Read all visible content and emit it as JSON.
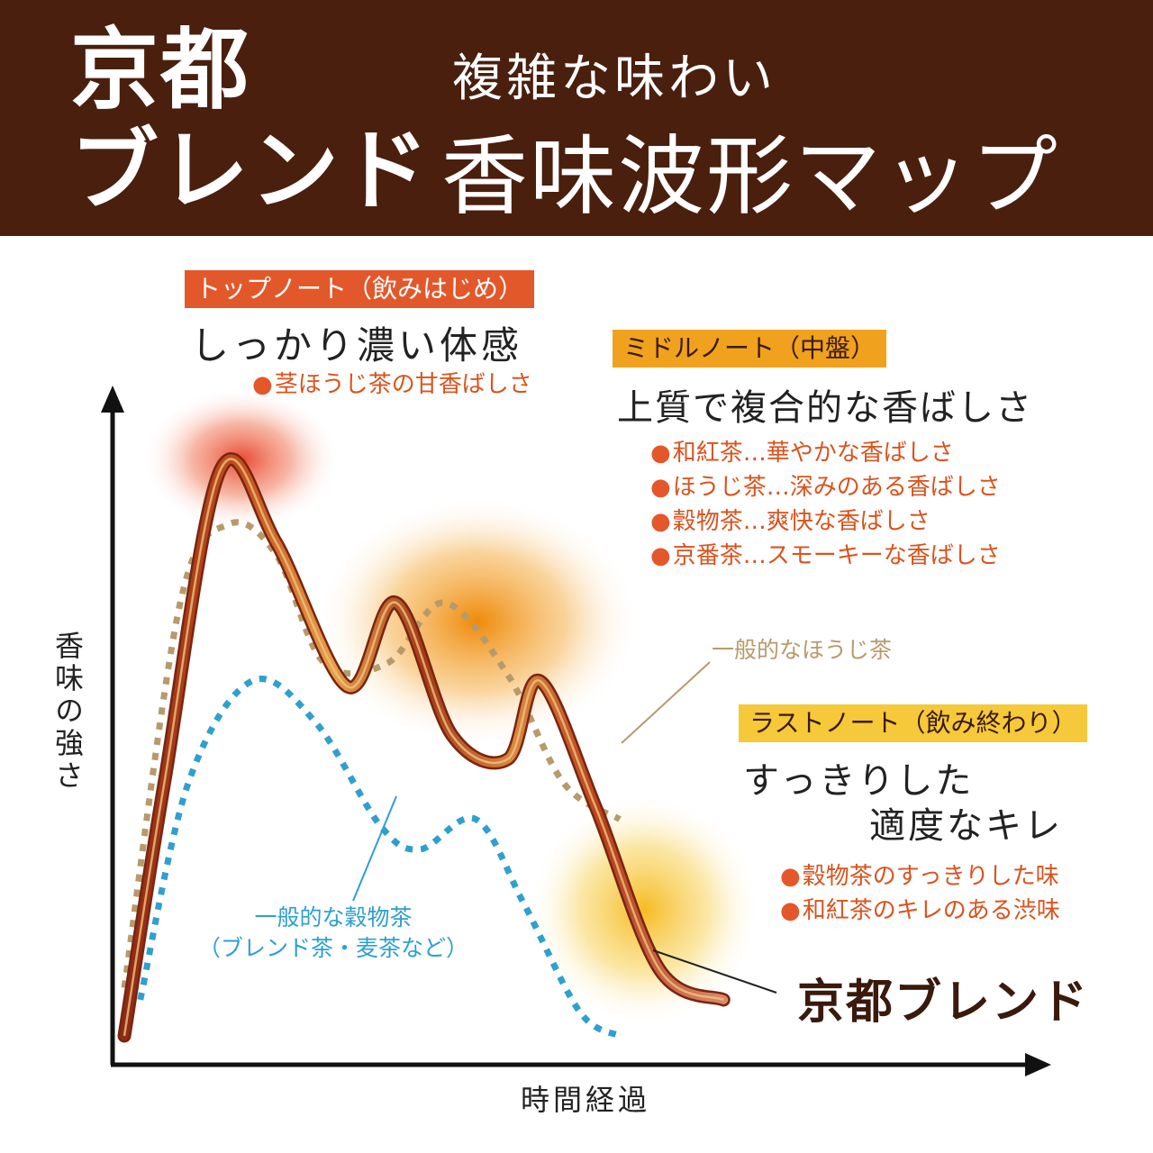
{
  "header": {
    "brand_line1": "京都",
    "brand_line2": "ブレンド",
    "subtitle": "複雑な味わい",
    "title": "香味波形マップ",
    "background_color": "#4a1f0e"
  },
  "top_note": {
    "tag": "トップノート（飲みはじめ）",
    "heading": "しっかり濃い体感",
    "items": [
      "茎ほうじ茶の甘香ばしさ"
    ]
  },
  "middle_note": {
    "tag": "ミドルノート（中盤）",
    "heading": "上質で複合的な香ばしさ",
    "items": [
      "和紅茶…華やかな香ばしさ",
      "ほうじ茶…深みのある香ばしさ",
      "穀物茶…爽快な香ばしさ",
      "京番茶…スモーキーな香ばしさ"
    ]
  },
  "last_note": {
    "tag": "ラストノート（飲み終わり）",
    "heading_line1": "すっきりした",
    "heading_line2": "適度なキレ",
    "items": [
      "穀物茶のすっきりした味",
      "和紅茶のキレのある渋味"
    ]
  },
  "labels": {
    "hojicha": "一般的なほうじ茶",
    "grain_line1": "一般的な穀物茶",
    "grain_line2": "（ブレンド茶・麦茶など）",
    "kyoto": "京都ブレンド"
  },
  "chart_data": {
    "type": "line",
    "xlabel": "時間経過",
    "ylabel": "香味の強さ",
    "xlim": [
      0,
      1
    ],
    "ylim": [
      0,
      1
    ],
    "series": [
      {
        "name": "京都ブレンド",
        "style": "ribbon",
        "color": "#b5401c",
        "x": [
          0.0,
          0.05,
          0.12,
          0.19,
          0.28,
          0.34,
          0.41,
          0.48,
          0.52,
          0.59,
          0.67,
          0.75
        ],
        "y": [
          0.0,
          0.42,
          0.94,
          0.82,
          0.58,
          0.72,
          0.5,
          0.46,
          0.59,
          0.38,
          0.11,
          0.06
        ]
      },
      {
        "name": "一般的なほうじ茶",
        "style": "dotted",
        "color": "#b79a6c",
        "x": [
          0.0,
          0.07,
          0.13,
          0.19,
          0.25,
          0.33,
          0.4,
          0.48,
          0.55,
          0.62
        ],
        "y": [
          0.08,
          0.72,
          0.85,
          0.8,
          0.62,
          0.62,
          0.72,
          0.6,
          0.42,
          0.36
        ]
      },
      {
        "name": "一般的な穀物茶",
        "style": "dotted",
        "color": "#2f9fd0",
        "x": [
          0.02,
          0.08,
          0.16,
          0.24,
          0.32,
          0.37,
          0.44,
          0.5,
          0.57,
          0.62
        ],
        "y": [
          0.06,
          0.42,
          0.59,
          0.52,
          0.35,
          0.31,
          0.36,
          0.22,
          0.04,
          0.0
        ]
      }
    ]
  }
}
